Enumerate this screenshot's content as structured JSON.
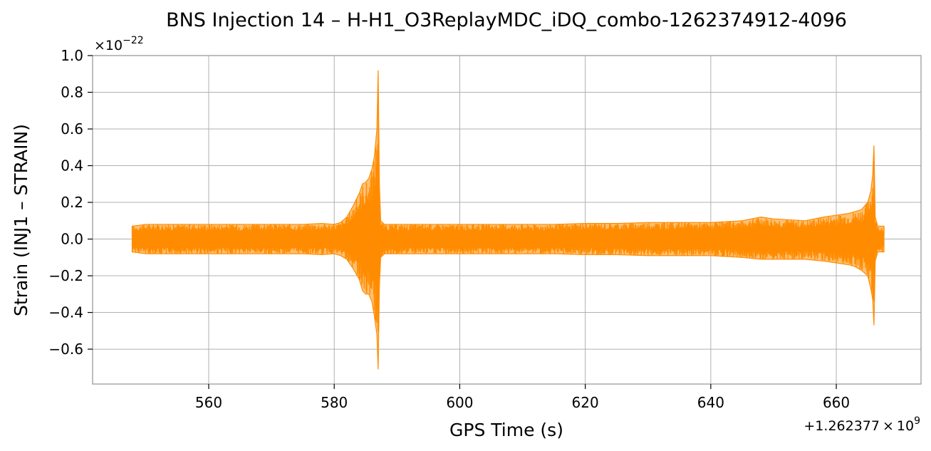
{
  "chart_data": {
    "type": "line",
    "title": "BNS Injection 14 – H-H1_O3ReplayMDC_iDQ_combo-1262374912-4096",
    "xlabel": "GPS Time (s)",
    "ylabel": "Strain (INJ1 – STRAIN)",
    "x_offset": {
      "base": "+1.262377",
      "times": "×",
      "ten": "10",
      "exp": "9"
    },
    "y_scale": {
      "times": "×",
      "ten": "10",
      "exp": "−22"
    },
    "xlim": [
      541.5,
      673.5
    ],
    "ylim": [
      -0.79,
      1.0
    ],
    "x_ticks": [
      560,
      580,
      600,
      620,
      640,
      660
    ],
    "x_tick_labels": [
      "560",
      "580",
      "600",
      "620",
      "640",
      "660"
    ],
    "y_ticks": [
      -0.6,
      -0.4,
      -0.2,
      0.0,
      0.2,
      0.4,
      0.6,
      0.8,
      1.0
    ],
    "y_tick_labels": [
      "−0.6",
      "−0.4",
      "−0.2",
      "0.0",
      "0.2",
      "0.4",
      "0.6",
      "0.8",
      "1.0"
    ],
    "grid": true,
    "series": [
      {
        "color": "#ff8c00",
        "envelope": {
          "x": [
            547.8,
            550,
            555,
            560,
            565,
            570,
            575,
            578,
            580,
            581,
            582,
            583,
            584,
            584.5,
            585,
            585.5,
            586,
            586.4,
            586.8,
            587.0,
            587.2,
            587.4,
            588,
            590,
            595,
            600,
            605,
            610,
            615,
            620,
            625,
            630,
            635,
            640,
            645,
            648,
            650,
            655,
            658,
            660,
            662,
            663,
            664,
            665,
            665.5,
            665.8,
            666.0,
            666.2,
            666.6,
            667,
            667.6
          ],
          "upper": [
            0.07,
            0.08,
            0.08,
            0.08,
            0.08,
            0.08,
            0.08,
            0.085,
            0.08,
            0.09,
            0.12,
            0.18,
            0.25,
            0.3,
            0.31,
            0.33,
            0.38,
            0.45,
            0.6,
            0.92,
            0.3,
            0.1,
            0.08,
            0.08,
            0.08,
            0.08,
            0.08,
            0.08,
            0.08,
            0.085,
            0.085,
            0.09,
            0.09,
            0.09,
            0.1,
            0.12,
            0.11,
            0.1,
            0.12,
            0.13,
            0.14,
            0.15,
            0.16,
            0.2,
            0.26,
            0.35,
            0.51,
            0.12,
            0.07,
            0.07,
            0.07
          ],
          "lower": [
            -0.07,
            -0.08,
            -0.08,
            -0.08,
            -0.08,
            -0.08,
            -0.08,
            -0.085,
            -0.08,
            -0.09,
            -0.11,
            -0.16,
            -0.22,
            -0.28,
            -0.3,
            -0.3,
            -0.34,
            -0.42,
            -0.52,
            -0.71,
            -0.25,
            -0.1,
            -0.08,
            -0.08,
            -0.08,
            -0.08,
            -0.08,
            -0.08,
            -0.08,
            -0.085,
            -0.085,
            -0.09,
            -0.09,
            -0.09,
            -0.1,
            -0.11,
            -0.11,
            -0.11,
            -0.12,
            -0.13,
            -0.14,
            -0.15,
            -0.17,
            -0.2,
            -0.27,
            -0.33,
            -0.47,
            -0.12,
            -0.07,
            -0.07,
            -0.07
          ]
        }
      }
    ]
  }
}
